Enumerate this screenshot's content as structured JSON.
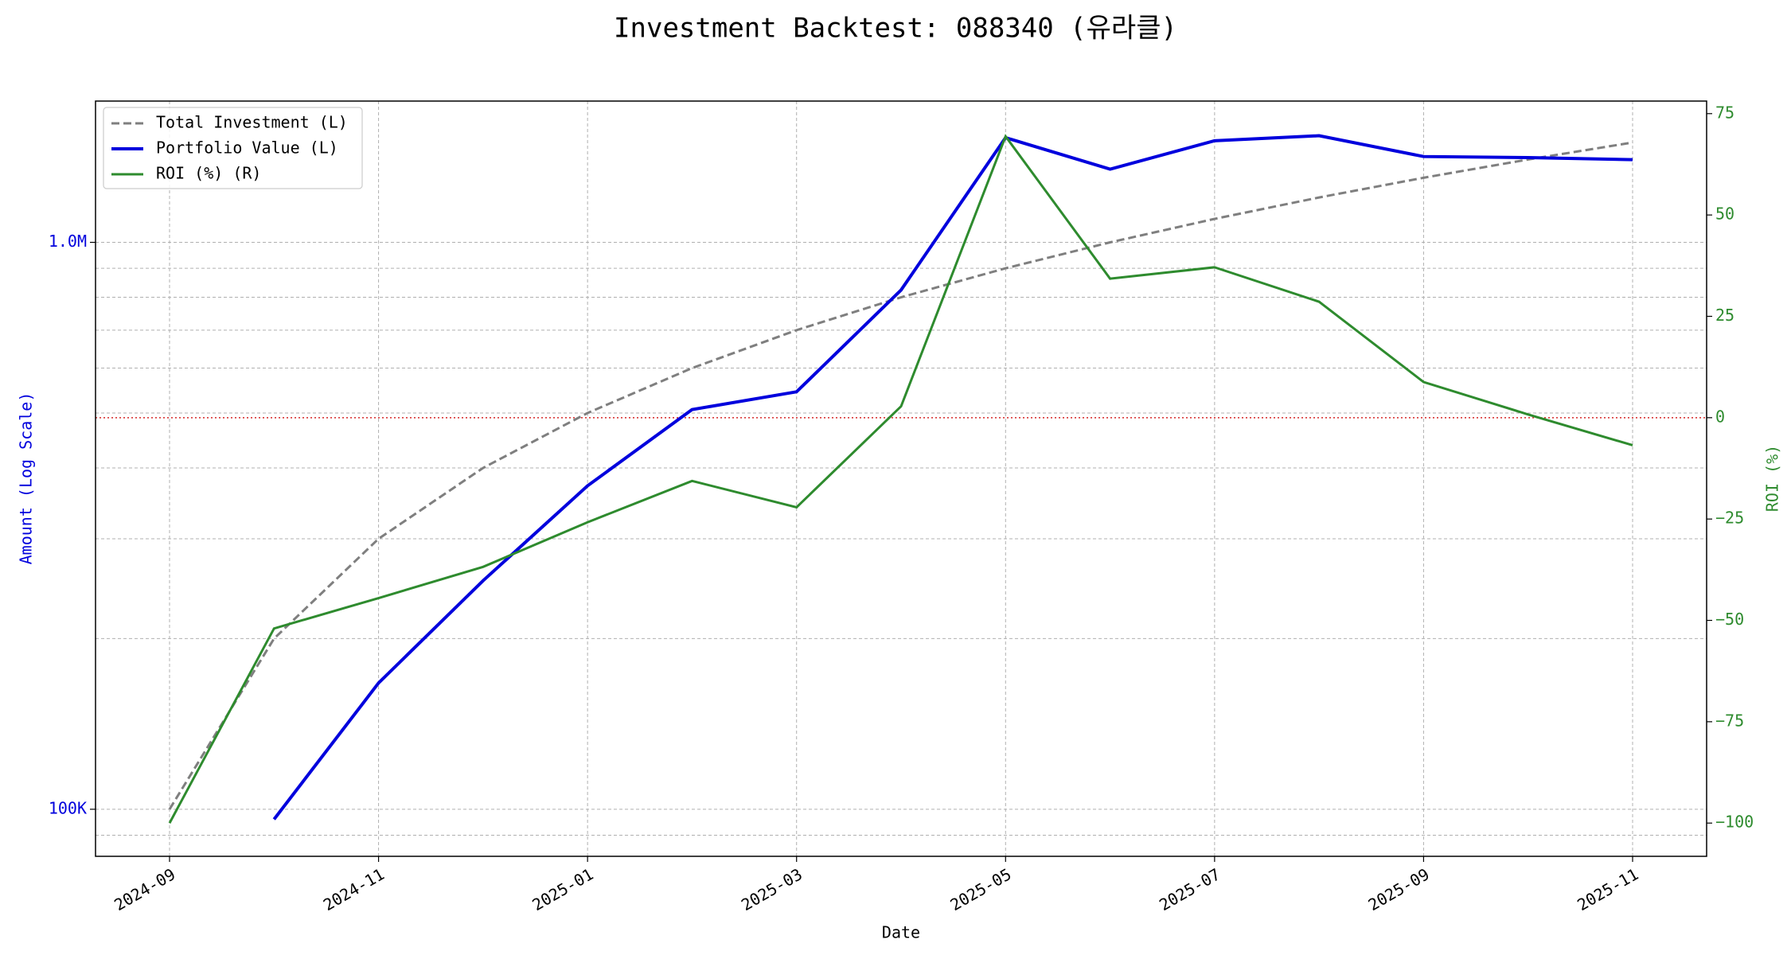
{
  "chart_data": {
    "type": "line",
    "title": "Investment Backtest: 088340 (유라클)",
    "xlabel": "Date",
    "ylabel": "Amount (Log Scale)",
    "y2label": "ROI (%)",
    "x": [
      "2024-09",
      "2024-10",
      "2024-11",
      "2024-12",
      "2025-01",
      "2025-02",
      "2025-03",
      "2025-04",
      "2025-05",
      "2025-06",
      "2025-07",
      "2025-08",
      "2025-09",
      "2025-10",
      "2025-11"
    ],
    "xlim": [
      "2024-09",
      "2025-11"
    ],
    "xticks": [
      "2024-09",
      "2024-11",
      "2025-01",
      "2025-03",
      "2025-05",
      "2025-07",
      "2025-09",
      "2025-11"
    ],
    "ylog": true,
    "ylim": [
      82600,
      1775000
    ],
    "yticks": [
      {
        "value": 100000,
        "label": "100K"
      },
      {
        "value": 1000000,
        "label": "1.0M"
      }
    ],
    "y2lim": [
      -108.2,
      78.1
    ],
    "y2ticks": [
      {
        "value": -100,
        "label": "−100"
      },
      {
        "value": -75,
        "label": "−75"
      },
      {
        "value": -50,
        "label": "−50"
      },
      {
        "value": -25,
        "label": "−25"
      },
      0,
      25,
      50,
      75
    ],
    "grid": true,
    "legend": "upper left",
    "hline": {
      "value": 0,
      "axis": "y2",
      "color": "#d62728"
    },
    "series": [
      {
        "name": "Total Investment (L)",
        "color": "#7f7f7f",
        "linestyle": "dashed",
        "linewidth": 3,
        "axis": "y",
        "values": [
          100000,
          200000,
          300000,
          400000,
          500000,
          600000,
          700000,
          800000,
          900000,
          1000000,
          1100000,
          1200000,
          1300000,
          1400000,
          1500000
        ]
      },
      {
        "name": "Portfolio Value (L)",
        "color": "#0000dd",
        "linestyle": "solid",
        "linewidth": 4,
        "axis": "y",
        "values": [
          null,
          96000,
          167000,
          253000,
          372000,
          507000,
          545000,
          824000,
          1530000,
          1346000,
          1511000,
          1542000,
          1417000,
          1411000,
          1399000
        ]
      },
      {
        "name": "ROI (%) (R)",
        "color": "#2e8b2e",
        "linestyle": "solid",
        "linewidth": 3,
        "axis": "y2",
        "values": [
          -100,
          -52,
          -44.5,
          -36.8,
          -25.8,
          -15.6,
          -22.1,
          2.8,
          69.4,
          34.3,
          37.1,
          28.6,
          8.8,
          0.8,
          -6.8
        ]
      }
    ]
  }
}
